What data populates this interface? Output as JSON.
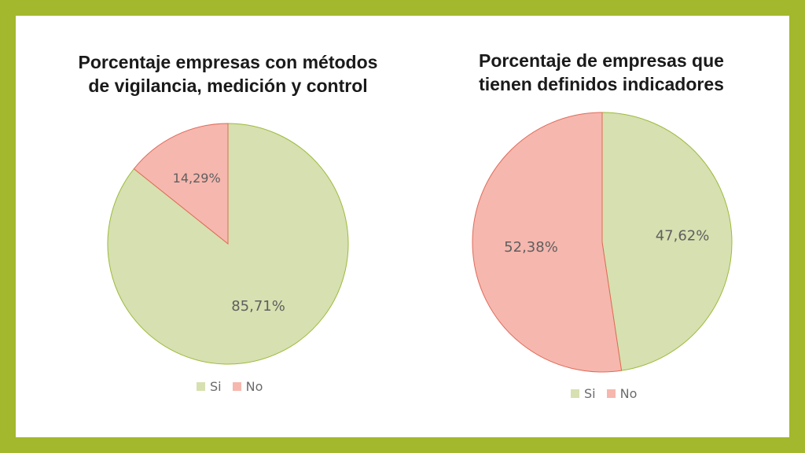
{
  "chart_data": [
    {
      "type": "pie",
      "title": "Porcentaje empresas con métodos\nde vigilancia, medición y control",
      "categories": [
        "Si",
        "No"
      ],
      "values": [
        85.71,
        14.29
      ],
      "data_labels": [
        "85,71%",
        "14,29%"
      ],
      "colors": [
        "#d7e0b0",
        "#f6b7ae"
      ],
      "edge_colors": [
        "#9bbb3c",
        "#e06b5a"
      ],
      "legend_position": "bottom"
    },
    {
      "type": "pie",
      "title": "Porcentaje de empresas que\ntienen definidos indicadores",
      "categories": [
        "Si",
        "No"
      ],
      "values": [
        47.62,
        52.38
      ],
      "data_labels": [
        "47,62%",
        "52,38%"
      ],
      "colors": [
        "#d7e0b0",
        "#f6b7ae"
      ],
      "edge_colors": [
        "#9bbb3c",
        "#e06b5a"
      ],
      "legend_position": "bottom"
    }
  ],
  "theme": {
    "frame_color": "#a3b82c",
    "background": "#ffffff"
  }
}
